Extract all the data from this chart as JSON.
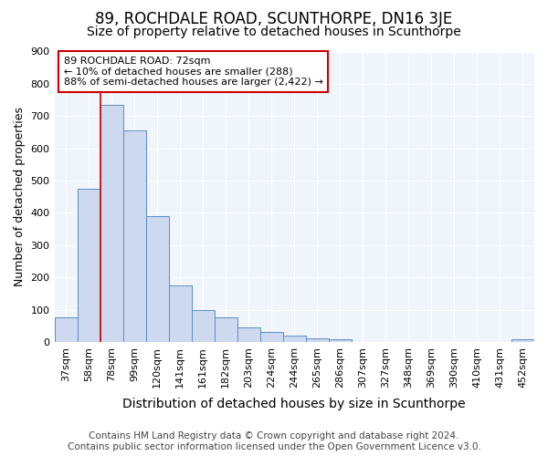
{
  "title": "89, ROCHDALE ROAD, SCUNTHORPE, DN16 3JE",
  "subtitle": "Size of property relative to detached houses in Scunthorpe",
  "xlabel": "Distribution of detached houses by size in Scunthorpe",
  "ylabel": "Number of detached properties",
  "categories": [
    "37sqm",
    "58sqm",
    "78sqm",
    "99sqm",
    "120sqm",
    "141sqm",
    "161sqm",
    "182sqm",
    "203sqm",
    "224sqm",
    "244sqm",
    "265sqm",
    "286sqm",
    "307sqm",
    "327sqm",
    "348sqm",
    "369sqm",
    "390sqm",
    "410sqm",
    "431sqm",
    "452sqm"
  ],
  "values": [
    75,
    475,
    735,
    655,
    390,
    175,
    98,
    75,
    45,
    32,
    20,
    12,
    8,
    0,
    0,
    0,
    0,
    0,
    0,
    0,
    8
  ],
  "bar_color": "#cdd9ee",
  "bar_edge_color": "#5b8cc8",
  "red_line_x": 1.5,
  "annotation_text": "89 ROCHDALE ROAD: 72sqm\n← 10% of detached houses are smaller (288)\n88% of semi-detached houses are larger (2,422) →",
  "annotation_box_color": "#ffffff",
  "annotation_box_edge_color": "#cc0000",
  "ylim": [
    0,
    900
  ],
  "yticks": [
    0,
    100,
    200,
    300,
    400,
    500,
    600,
    700,
    800,
    900
  ],
  "bg_color": "#ffffff",
  "plot_bg_color": "#f0f4fb",
  "grid_color": "#ffffff",
  "title_fontsize": 12,
  "subtitle_fontsize": 10,
  "xlabel_fontsize": 10,
  "ylabel_fontsize": 9,
  "tick_fontsize": 8,
  "annotation_fontsize": 8,
  "footer_fontsize": 7.5,
  "footer_line1": "Contains HM Land Registry data © Crown copyright and database right 2024.",
  "footer_line2": "Contains public sector information licensed under the Open Government Licence v3.0."
}
